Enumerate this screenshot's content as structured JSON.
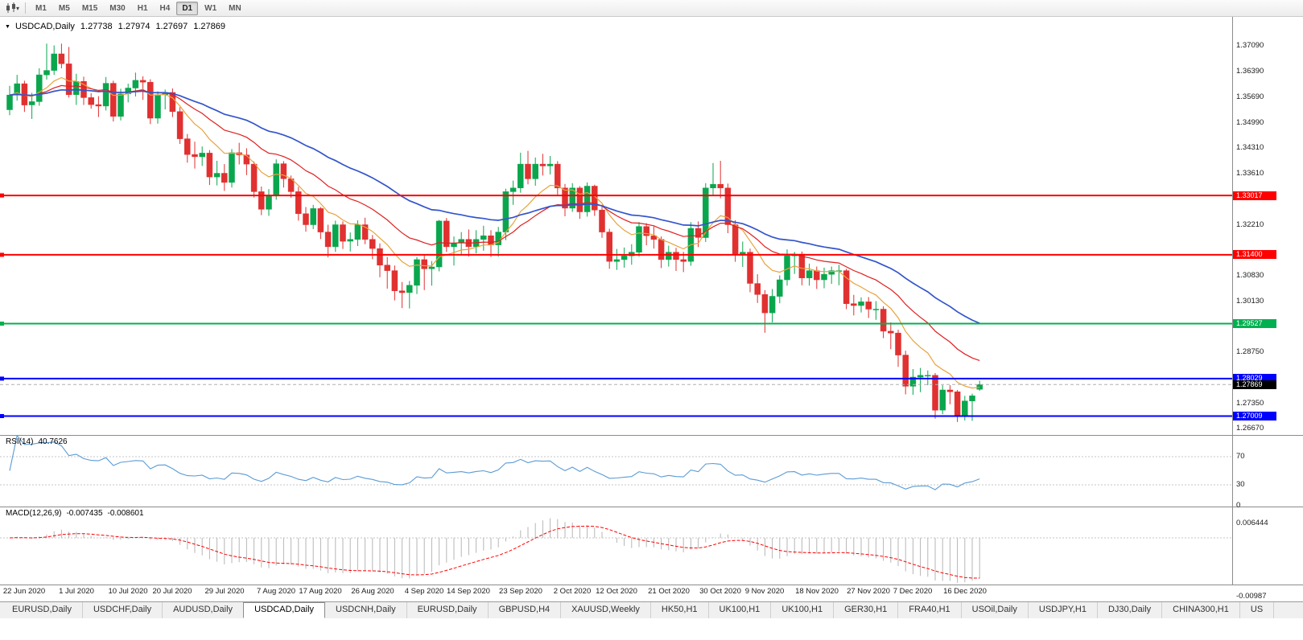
{
  "toolbar": {
    "chart_type_icon": "candlestick-chart",
    "dropdown_icon": "caret-down",
    "timeframes": [
      "M1",
      "M5",
      "M15",
      "M30",
      "H1",
      "H4",
      "D1",
      "W1",
      "MN"
    ],
    "active_timeframe": "D1"
  },
  "chart": {
    "symbol": "USDCAD,Daily",
    "open": "1.27738",
    "high": "1.27974",
    "low": "1.27697",
    "close": "1.27869",
    "price_axis_labels": [
      "1.37090",
      "1.36390",
      "1.35690",
      "1.34990",
      "1.34310",
      "1.33610",
      "1.32210",
      "1.30830",
      "1.30130",
      "1.28750",
      "1.27350",
      "1.26670"
    ],
    "horizontal_lines": [
      {
        "price": 1.33017,
        "label": "1.33017",
        "color": "#ff0000"
      },
      {
        "price": 1.314,
        "label": "1.31400",
        "color": "#ff0000"
      },
      {
        "price": 1.29527,
        "label": "1.29527",
        "color": "#00b050"
      },
      {
        "price": 1.28029,
        "label": "1.28029",
        "color": "#0000ff"
      },
      {
        "price": 1.27009,
        "label": "1.27009",
        "color": "#0000ff"
      }
    ],
    "bid": {
      "price": 1.27869,
      "label": "1.27869"
    }
  },
  "indicators": {
    "rsi": {
      "name": "RSI(14)",
      "value": "40.7626",
      "scale": [
        "70",
        "30",
        "0"
      ],
      "levels": [
        70,
        30
      ]
    },
    "macd": {
      "name": "MACD(12,26,9)",
      "main_value": "-0.007435",
      "signal_value": "-0.008601",
      "scale_top": "0.006444",
      "scale_bottom": "-0.00987"
    }
  },
  "date_axis": {
    "labels": [
      "22 Jun 2020",
      "1 Jul 2020",
      "10 Jul 2020",
      "20 Jul 2020",
      "29 Jul 2020",
      "7 Aug 2020",
      "17 Aug 2020",
      "26 Aug 2020",
      "4 Sep 2020",
      "14 Sep 2020",
      "23 Sep 2020",
      "2 Oct 2020",
      "12 Oct 2020",
      "21 Oct 2020",
      "30 Oct 2020",
      "9 Nov 2020",
      "18 Nov 2020",
      "27 Nov 2020",
      "7 Dec 2020",
      "16 Dec 2020"
    ],
    "indices": [
      2,
      9,
      16,
      22,
      29,
      36,
      42,
      49,
      56,
      62,
      69,
      76,
      82,
      89,
      96,
      102,
      109,
      116,
      122,
      129
    ]
  },
  "tabs": [
    {
      "label": "EURUSD,Daily",
      "active": false
    },
    {
      "label": "USDCHF,Daily",
      "active": false
    },
    {
      "label": "AUDUSD,Daily",
      "active": false
    },
    {
      "label": "USDCAD,Daily",
      "active": true
    },
    {
      "label": "USDCNH,Daily",
      "active": false
    },
    {
      "label": "EURUSD,Daily",
      "active": false
    },
    {
      "label": "GBPUSD,H4",
      "active": false
    },
    {
      "label": "XAUUSD,Weekly",
      "active": false
    },
    {
      "label": "HK50,H1",
      "active": false
    },
    {
      "label": "UK100,H1",
      "active": false
    },
    {
      "label": "UK100,H1",
      "active": false
    },
    {
      "label": "GER30,H1",
      "active": false
    },
    {
      "label": "FRA40,H1",
      "active": false
    },
    {
      "label": "USOil,Daily",
      "active": false
    },
    {
      "label": "USDJPY,H1",
      "active": false
    },
    {
      "label": "DJ30,Daily",
      "active": false
    },
    {
      "label": "CHINA300,H1",
      "active": false
    },
    {
      "label": "US",
      "active": false
    }
  ],
  "colors": {
    "bull": "#0aa64e",
    "bear": "#e03030",
    "ma_fast": "#e8a33d",
    "ma_mid": "#e02020",
    "ma_slow": "#3355cc",
    "rsi": "#5b9bd5",
    "macd_hist": "#b6b6b6",
    "macd_signal": "#ff0000",
    "bid_line": "#b0b0b0",
    "line_red": "#ff0000",
    "line_green": "#00b050",
    "line_blue": "#0000ff"
  },
  "chart_data": {
    "type": "candlestick",
    "symbol": "USDCAD",
    "timeframe": "Daily",
    "ylim": [
      1.26495,
      1.379
    ],
    "current_bar": {
      "open": 1.27738,
      "high": 1.27974,
      "low": 1.27697,
      "close": 1.27869
    },
    "candles": [
      [
        1.3535,
        1.36,
        1.352,
        1.3575
      ],
      [
        1.3575,
        1.363,
        1.356,
        1.3606
      ],
      [
        1.3606,
        1.3614,
        1.3529,
        1.3548
      ],
      [
        1.3548,
        1.3581,
        1.351,
        1.3557
      ],
      [
        1.3557,
        1.3648,
        1.3546,
        1.363
      ],
      [
        1.363,
        1.3715,
        1.3617,
        1.3642
      ],
      [
        1.3642,
        1.371,
        1.363,
        1.3687
      ],
      [
        1.3687,
        1.3715,
        1.3648,
        1.366
      ],
      [
        1.366,
        1.3706,
        1.3568,
        1.3576
      ],
      [
        1.3576,
        1.3633,
        1.3548,
        1.3612
      ],
      [
        1.3612,
        1.3625,
        1.3548,
        1.3568
      ],
      [
        1.3568,
        1.358,
        1.3538,
        1.3549
      ],
      [
        1.3549,
        1.3572,
        1.3515,
        1.3545
      ],
      [
        1.3545,
        1.3624,
        1.3533,
        1.3607
      ],
      [
        1.3607,
        1.3614,
        1.3503,
        1.3517
      ],
      [
        1.3517,
        1.3592,
        1.3506,
        1.3578
      ],
      [
        1.3578,
        1.3606,
        1.3555,
        1.3594
      ],
      [
        1.3594,
        1.3636,
        1.3571,
        1.3615
      ],
      [
        1.3615,
        1.3626,
        1.3562,
        1.361
      ],
      [
        1.361,
        1.3618,
        1.3496,
        1.3512
      ],
      [
        1.3512,
        1.3585,
        1.3497,
        1.3576
      ],
      [
        1.3576,
        1.359,
        1.3536,
        1.3582
      ],
      [
        1.3582,
        1.3593,
        1.3515,
        1.353
      ],
      [
        1.353,
        1.3542,
        1.3442,
        1.3456
      ],
      [
        1.3456,
        1.3469,
        1.3391,
        1.3413
      ],
      [
        1.3413,
        1.3448,
        1.3375,
        1.3407
      ],
      [
        1.3407,
        1.3435,
        1.3382,
        1.3417
      ],
      [
        1.3417,
        1.3425,
        1.333,
        1.3352
      ],
      [
        1.3352,
        1.3396,
        1.3329,
        1.3362
      ],
      [
        1.3362,
        1.3387,
        1.3314,
        1.3337
      ],
      [
        1.3337,
        1.3428,
        1.3323,
        1.3418
      ],
      [
        1.3418,
        1.3445,
        1.3386,
        1.3412
      ],
      [
        1.3412,
        1.343,
        1.3357,
        1.3387
      ],
      [
        1.3387,
        1.3394,
        1.3296,
        1.3312
      ],
      [
        1.3312,
        1.3326,
        1.3248,
        1.3264
      ],
      [
        1.3264,
        1.3319,
        1.3246,
        1.3302
      ],
      [
        1.3302,
        1.34,
        1.329,
        1.3388
      ],
      [
        1.3388,
        1.3395,
        1.3323,
        1.3347
      ],
      [
        1.3347,
        1.3356,
        1.3295,
        1.3312
      ],
      [
        1.3312,
        1.3325,
        1.3233,
        1.3252
      ],
      [
        1.3252,
        1.327,
        1.3203,
        1.3222
      ],
      [
        1.3222,
        1.3276,
        1.321,
        1.3266
      ],
      [
        1.3266,
        1.327,
        1.3183,
        1.3202
      ],
      [
        1.3202,
        1.3222,
        1.3133,
        1.3162
      ],
      [
        1.3162,
        1.3233,
        1.3148,
        1.3222
      ],
      [
        1.3222,
        1.3231,
        1.3156,
        1.3177
      ],
      [
        1.3177,
        1.3201,
        1.3149,
        1.3182
      ],
      [
        1.3182,
        1.3234,
        1.3164,
        1.3222
      ],
      [
        1.3222,
        1.3241,
        1.3169,
        1.3182
      ],
      [
        1.3182,
        1.3194,
        1.3128,
        1.3157
      ],
      [
        1.3157,
        1.3171,
        1.3079,
        1.3112
      ],
      [
        1.3112,
        1.3134,
        1.3048,
        1.3097
      ],
      [
        1.3097,
        1.3111,
        1.3016,
        1.3042
      ],
      [
        1.3042,
        1.3066,
        1.2995,
        1.3037
      ],
      [
        1.3037,
        1.3069,
        1.2994,
        1.3057
      ],
      [
        1.3057,
        1.3134,
        1.3033,
        1.3127
      ],
      [
        1.3127,
        1.3139,
        1.3044,
        1.3102
      ],
      [
        1.3102,
        1.3123,
        1.3056,
        1.3107
      ],
      [
        1.3107,
        1.3235,
        1.3095,
        1.3232
      ],
      [
        1.3232,
        1.324,
        1.3148,
        1.3162
      ],
      [
        1.3162,
        1.319,
        1.3111,
        1.3172
      ],
      [
        1.3172,
        1.3202,
        1.3138,
        1.3182
      ],
      [
        1.3182,
        1.3209,
        1.3135,
        1.3162
      ],
      [
        1.3162,
        1.3207,
        1.3144,
        1.3182
      ],
      [
        1.3182,
        1.3219,
        1.3151,
        1.3192
      ],
      [
        1.3192,
        1.3207,
        1.3134,
        1.3167
      ],
      [
        1.3167,
        1.3216,
        1.3135,
        1.3202
      ],
      [
        1.3202,
        1.332,
        1.318,
        1.3312
      ],
      [
        1.3312,
        1.3342,
        1.3276,
        1.3322
      ],
      [
        1.3322,
        1.3418,
        1.3309,
        1.3387
      ],
      [
        1.3387,
        1.3423,
        1.3332,
        1.3347
      ],
      [
        1.3347,
        1.3405,
        1.3328,
        1.3387
      ],
      [
        1.3387,
        1.3415,
        1.3356,
        1.3382
      ],
      [
        1.3382,
        1.3409,
        1.3359,
        1.3387
      ],
      [
        1.3387,
        1.3395,
        1.3304,
        1.3322
      ],
      [
        1.3322,
        1.3333,
        1.3245,
        1.3267
      ],
      [
        1.3267,
        1.3335,
        1.3257,
        1.3322
      ],
      [
        1.3322,
        1.3327,
        1.3238,
        1.3257
      ],
      [
        1.3257,
        1.3337,
        1.3244,
        1.3327
      ],
      [
        1.3327,
        1.3331,
        1.3246,
        1.3262
      ],
      [
        1.3262,
        1.3276,
        1.3186,
        1.3202
      ],
      [
        1.3202,
        1.3211,
        1.3102,
        1.3122
      ],
      [
        1.3122,
        1.3156,
        1.3099,
        1.3127
      ],
      [
        1.3127,
        1.316,
        1.3105,
        1.3137
      ],
      [
        1.3137,
        1.3169,
        1.3113,
        1.3147
      ],
      [
        1.3147,
        1.3229,
        1.3135,
        1.3217
      ],
      [
        1.3217,
        1.3226,
        1.3166,
        1.3192
      ],
      [
        1.3192,
        1.3217,
        1.3157,
        1.3182
      ],
      [
        1.3182,
        1.319,
        1.3104,
        1.3127
      ],
      [
        1.3127,
        1.3165,
        1.3108,
        1.3147
      ],
      [
        1.3147,
        1.3159,
        1.3096,
        1.3127
      ],
      [
        1.3127,
        1.3148,
        1.3093,
        1.3122
      ],
      [
        1.3122,
        1.3229,
        1.311,
        1.3212
      ],
      [
        1.3212,
        1.3231,
        1.3161,
        1.3187
      ],
      [
        1.3187,
        1.3335,
        1.3175,
        1.3322
      ],
      [
        1.3322,
        1.339,
        1.3302,
        1.3332
      ],
      [
        1.3332,
        1.3396,
        1.3294,
        1.3322
      ],
      [
        1.3322,
        1.3334,
        1.3199,
        1.3222
      ],
      [
        1.3222,
        1.3234,
        1.3121,
        1.3142
      ],
      [
        1.3142,
        1.3176,
        1.3107,
        1.3147
      ],
      [
        1.3147,
        1.3157,
        1.3038,
        1.3062
      ],
      [
        1.3062,
        1.3087,
        1.3009,
        1.3032
      ],
      [
        1.3032,
        1.3044,
        1.2928,
        1.2982
      ],
      [
        1.2982,
        1.3047,
        1.2956,
        1.3027
      ],
      [
        1.3027,
        1.3084,
        1.3008,
        1.3072
      ],
      [
        1.3072,
        1.3155,
        1.3056,
        1.3137
      ],
      [
        1.3137,
        1.3148,
        1.3088,
        1.3142
      ],
      [
        1.3142,
        1.3149,
        1.3057,
        1.3077
      ],
      [
        1.3077,
        1.3116,
        1.3056,
        1.3097
      ],
      [
        1.3097,
        1.3108,
        1.3047,
        1.3072
      ],
      [
        1.3072,
        1.3105,
        1.3049,
        1.3087
      ],
      [
        1.3087,
        1.3108,
        1.3061,
        1.3097
      ],
      [
        1.3097,
        1.3113,
        1.3057,
        1.3097
      ],
      [
        1.3097,
        1.3102,
        1.2992,
        1.3007
      ],
      [
        1.3007,
        1.3031,
        1.2975,
        1.3002
      ],
      [
        1.3002,
        1.3024,
        1.2983,
        1.3012
      ],
      [
        1.3012,
        1.3025,
        1.2968,
        1.2992
      ],
      [
        1.2992,
        1.3014,
        1.2963,
        1.2992
      ],
      [
        1.2992,
        1.3,
        1.2913,
        1.2932
      ],
      [
        1.2932,
        1.2956,
        1.2883,
        1.2927
      ],
      [
        1.2927,
        1.2936,
        1.2835,
        1.2867
      ],
      [
        1.2867,
        1.2879,
        1.276,
        1.2782
      ],
      [
        1.2782,
        1.2829,
        1.2759,
        1.2807
      ],
      [
        1.2807,
        1.2832,
        1.2766,
        1.2812
      ],
      [
        1.2812,
        1.2825,
        1.2785,
        1.2812
      ],
      [
        1.2812,
        1.2818,
        1.2694,
        1.2717
      ],
      [
        1.2717,
        1.2785,
        1.2706,
        1.2772
      ],
      [
        1.2772,
        1.2785,
        1.2733,
        1.2767
      ],
      [
        1.2767,
        1.2772,
        1.2685,
        1.2702
      ],
      [
        1.2702,
        1.2756,
        1.2689,
        1.2742
      ],
      [
        1.2742,
        1.2762,
        1.2688,
        1.2756
      ],
      [
        1.27738,
        1.27974,
        1.27697,
        1.27869
      ]
    ]
  }
}
